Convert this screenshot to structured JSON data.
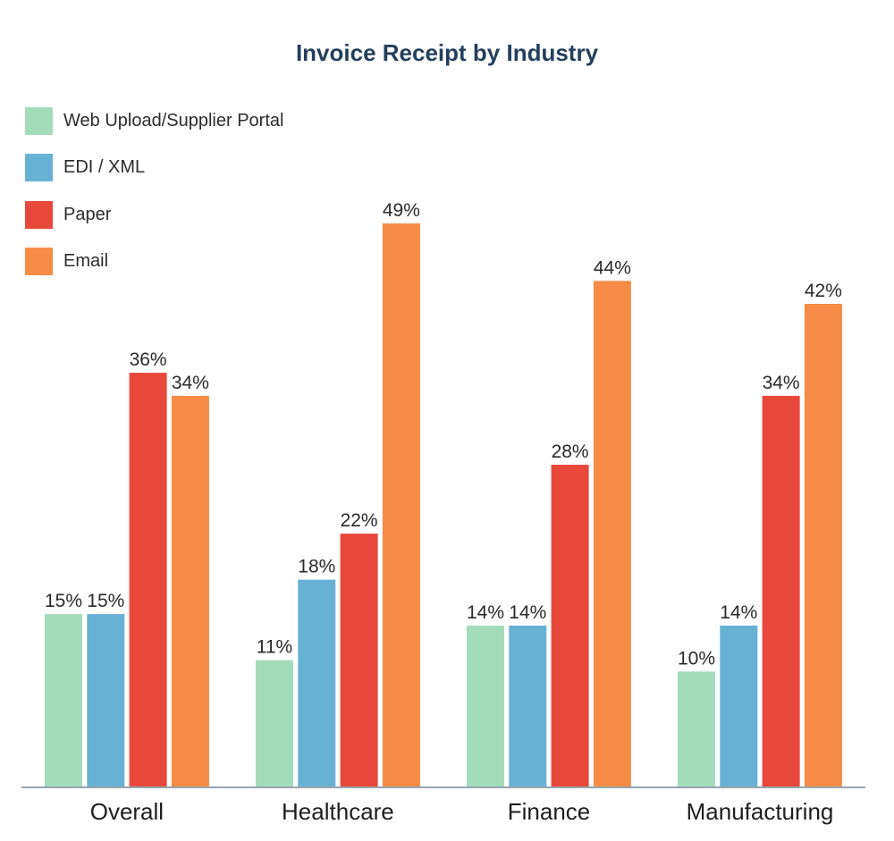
{
  "chart_data": {
    "type": "bar",
    "title": "Invoice Receipt by Industry",
    "categories": [
      "Overall",
      "Healthcare",
      "Finance",
      "Manufacturing"
    ],
    "series": [
      {
        "name": "Web Upload/Supplier Portal",
        "color": "#a3dcbb",
        "values": [
          15,
          11,
          14,
          10
        ]
      },
      {
        "name": "EDI / XML",
        "color": "#67b1d5",
        "values": [
          15,
          18,
          14,
          14
        ]
      },
      {
        "name": "Paper",
        "color": "#e8473b",
        "values": [
          36,
          22,
          28,
          34
        ]
      },
      {
        "name": "Email",
        "color": "#f68c45",
        "values": [
          34,
          49,
          44,
          42
        ]
      }
    ],
    "value_suffix": "%",
    "xlabel": "",
    "ylabel": "",
    "ylim": [
      0,
      49
    ],
    "grid": false,
    "legend_position": "top-left",
    "axis_color": "#97a4b0"
  }
}
